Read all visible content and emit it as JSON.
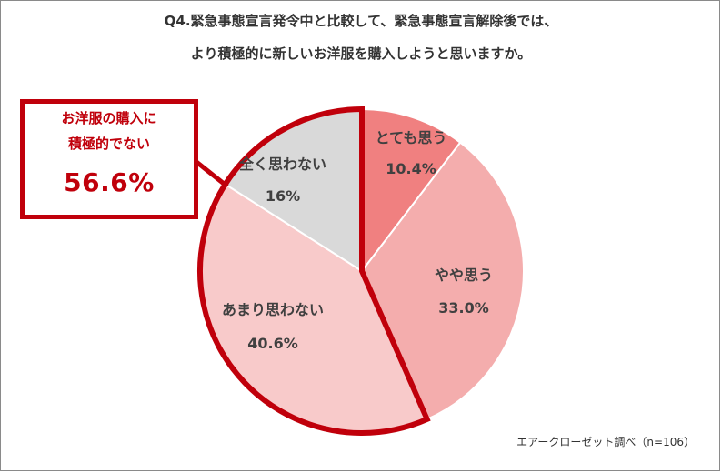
{
  "title": {
    "line1": "Q4.緊急事態宣言発令中と比較して、緊急事態宣言解除後では、",
    "line2": "より積極的に新しいお洋服を購入しようと思いますか。"
  },
  "callout": {
    "label_line1": "お洋服の購入に",
    "label_line2": "積極的でない",
    "value": "56.6%"
  },
  "source": "エアークローゼット調べ（n=106）",
  "colors": {
    "highlight": "#c0000b",
    "frame": "#8a8a8a"
  },
  "chart_data": {
    "type": "pie",
    "slices": [
      {
        "label": "とても思う",
        "value": 10.4,
        "value_label": "10.4%",
        "color": "#f08080"
      },
      {
        "label": "やや思う",
        "value": 33.0,
        "value_label": "33.0%",
        "color": "#f4adad"
      },
      {
        "label": "あまり思わない",
        "value": 40.6,
        "value_label": "40.6%",
        "color": "#f8caca"
      },
      {
        "label": "全く思わない",
        "value": 16.0,
        "value_label": "16%",
        "color": "#d9d9d9"
      }
    ],
    "highlight": {
      "slices": [
        "あまり思わない",
        "全く思わない"
      ],
      "total": 56.6
    },
    "start": "12 o'clock",
    "direction": "clockwise"
  }
}
